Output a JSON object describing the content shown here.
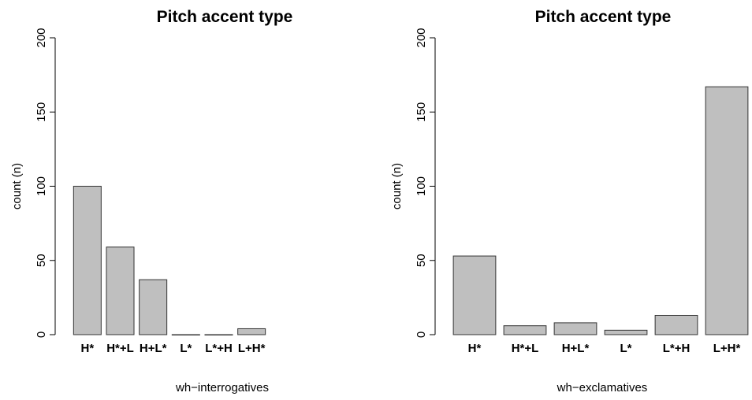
{
  "chart_data": [
    {
      "type": "bar",
      "title": "Pitch accent type",
      "xlabel": "wh−interrogatives",
      "ylabel": "count (n)",
      "categories": [
        "H*",
        "H*+L",
        "H+L*",
        "L*",
        "L*+H",
        "L+H*"
      ],
      "values": [
        100,
        59,
        37,
        0,
        0,
        4
      ],
      "ylim": [
        0,
        200
      ],
      "yticks": [
        "0",
        "50",
        "100",
        "150",
        "200"
      ],
      "grid": false
    },
    {
      "type": "bar",
      "title": "Pitch accent type",
      "xlabel": "wh−exclamatives",
      "ylabel": "count (n)",
      "categories": [
        "H*",
        "H*+L",
        "H+L*",
        "L*",
        "L*+H",
        "L+H*"
      ],
      "values": [
        53,
        6,
        8,
        3,
        13,
        167
      ],
      "ylim": [
        0,
        200
      ],
      "yticks": [
        "0",
        "50",
        "100",
        "150",
        "200"
      ],
      "grid": false
    }
  ]
}
